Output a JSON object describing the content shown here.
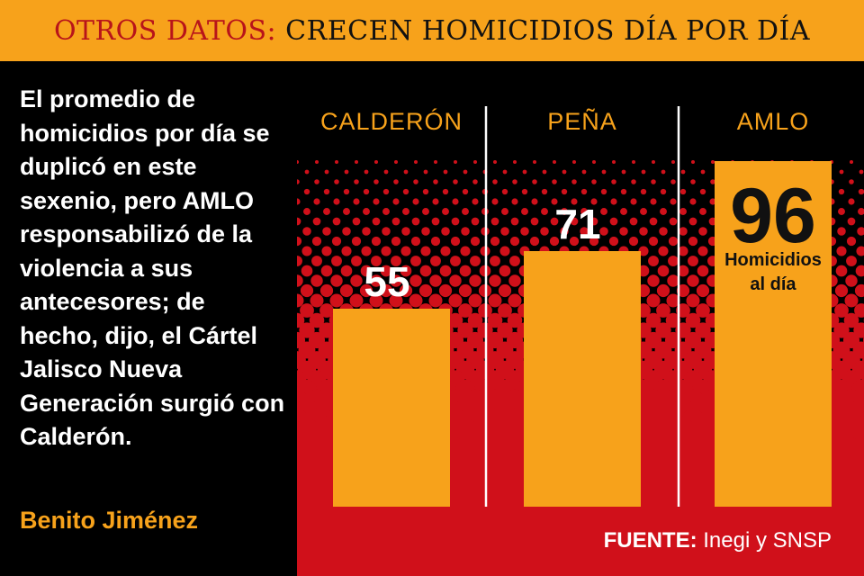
{
  "header": {
    "kicker": "OTROS DATOS:",
    "title": "CRECEN HOMICIDIOS DÍA POR DÍA"
  },
  "blurb": {
    "text": "El promedio de homicidios por día se duplicó en este sexenio, pero AMLO responsabilizó de la violencia a sus antecesores; de hecho, dijo, el Cártel Jalisco Nueva Generación surgió con Calderón.",
    "author": "Benito Jiménez"
  },
  "source": {
    "label": "FUENTE:",
    "text": "Inegi y SNSP"
  },
  "colors": {
    "header_bg": "#F7A21B",
    "kicker": "#B8141A",
    "bar": "#F7A21B",
    "chart_bg_red": "#D0101A",
    "text": "#FFFFFF"
  },
  "chart_data": {
    "type": "bar",
    "categories": [
      "CALDERÓN",
      "PEÑA",
      "AMLO"
    ],
    "values": [
      55,
      71,
      96
    ],
    "value_labels": [
      "55",
      "71",
      "96"
    ],
    "highlight_note": "Homicidios al día",
    "ylim": [
      0,
      100
    ],
    "grid": false,
    "legend": "none"
  }
}
